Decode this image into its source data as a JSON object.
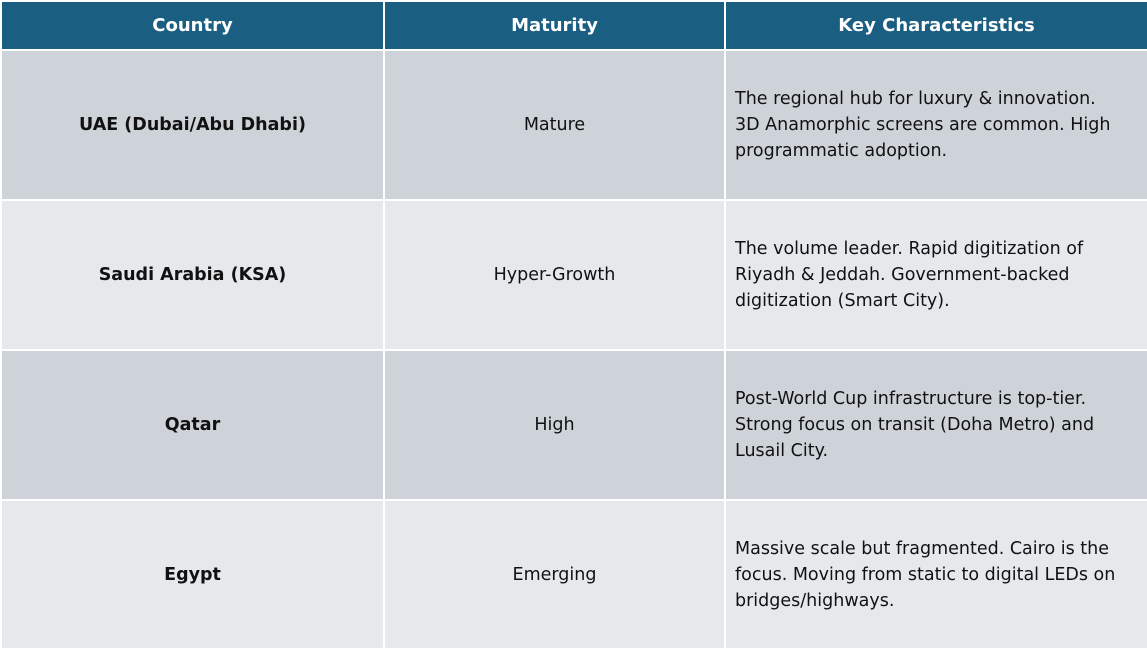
{
  "table": {
    "header": [
      "Country",
      "Maturity",
      "Key Characteristics"
    ],
    "rows": [
      [
        "UAE (Dubai/Abu Dhabi)",
        "Mature",
        "The regional hub for luxury & innovation. 3D Anamorphic screens are common. High programmatic adoption."
      ],
      [
        "Saudi Arabia (KSA)",
        "Hyper-Growth",
        "The volume leader. Rapid digitization of Riyadh & Jeddah. Government-backed digitization (Smart City)."
      ],
      [
        "Qatar",
        "High",
        "Post-World Cup infrastructure is top-tier. Strong focus on transit (Doha Metro) and Lusail City."
      ],
      [
        "Egypt",
        "Emerging",
        "Massive scale but fragmented. Cairo is the focus. Moving from static to digital LEDs on bridges/highways."
      ]
    ]
  }
}
